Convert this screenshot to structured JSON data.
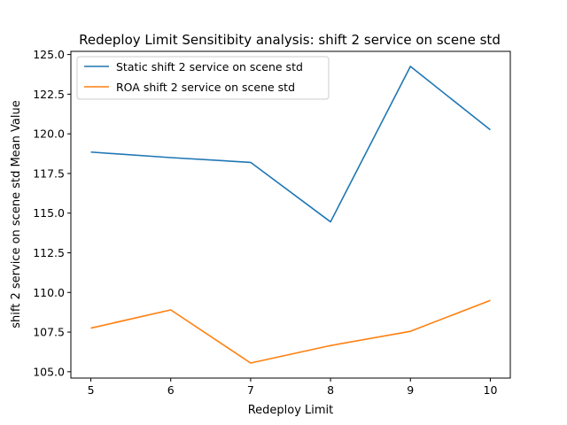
{
  "chart_data": {
    "type": "line",
    "title": "Redeploy Limit Sensitibity analysis: shift 2 service on scene std",
    "xlabel": "Redeploy Limit",
    "ylabel": "shift 2 service on scene std Mean Value",
    "x": [
      5,
      6,
      7,
      8,
      9,
      10
    ],
    "xlim": [
      4.75,
      10.25
    ],
    "ylim": [
      104.6,
      125.2
    ],
    "xticks": [
      "5",
      "6",
      "7",
      "8",
      "9",
      "10"
    ],
    "yticks": [
      "105.0",
      "107.5",
      "110.0",
      "112.5",
      "115.0",
      "117.5",
      "120.0",
      "122.5",
      "125.0"
    ],
    "grid": false,
    "legend_position": "top-left",
    "series": [
      {
        "name": "Static shift 2 service on scene std",
        "color": "#1f77b4",
        "values": [
          118.85,
          118.5,
          118.2,
          114.45,
          124.25,
          120.25
        ]
      },
      {
        "name": "ROA shift 2 service on scene std",
        "color": "#ff7f0e",
        "values": [
          107.75,
          108.9,
          105.55,
          106.65,
          107.55,
          109.5
        ]
      }
    ]
  }
}
